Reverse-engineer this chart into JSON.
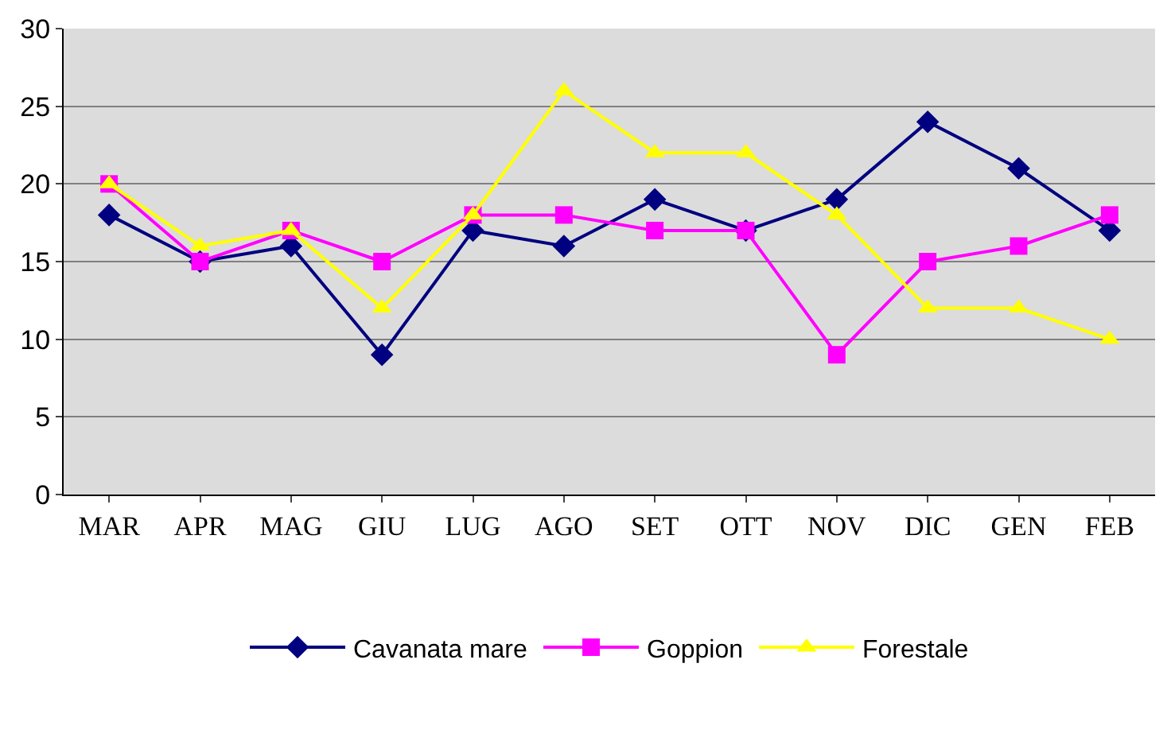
{
  "chart_data": {
    "type": "line",
    "categories": [
      "MAR",
      "APR",
      "MAG",
      "GIU",
      "LUG",
      "AGO",
      "SET",
      "OTT",
      "NOV",
      "DIC",
      "GEN",
      "FEB"
    ],
    "series": [
      {
        "name": "Cavanata mare",
        "color": "#000080",
        "marker": "diamond",
        "values": [
          18,
          15,
          16,
          9,
          17,
          16,
          19,
          17,
          19,
          24,
          21,
          17
        ]
      },
      {
        "name": "Goppion",
        "color": "#ff00ff",
        "marker": "square",
        "values": [
          20,
          15,
          17,
          15,
          18,
          18,
          17,
          17,
          9,
          15,
          16,
          18
        ]
      },
      {
        "name": "Forestale",
        "color": "#ffff00",
        "marker": "triangle",
        "values": [
          20,
          16,
          17,
          12,
          18,
          26,
          22,
          22,
          18,
          12,
          12,
          10
        ]
      }
    ],
    "ylim": [
      0,
      30
    ],
    "yticks": [
      0,
      5,
      10,
      15,
      20,
      25,
      30
    ],
    "grid": "y",
    "legend": "bottom",
    "line_style": "solid"
  }
}
